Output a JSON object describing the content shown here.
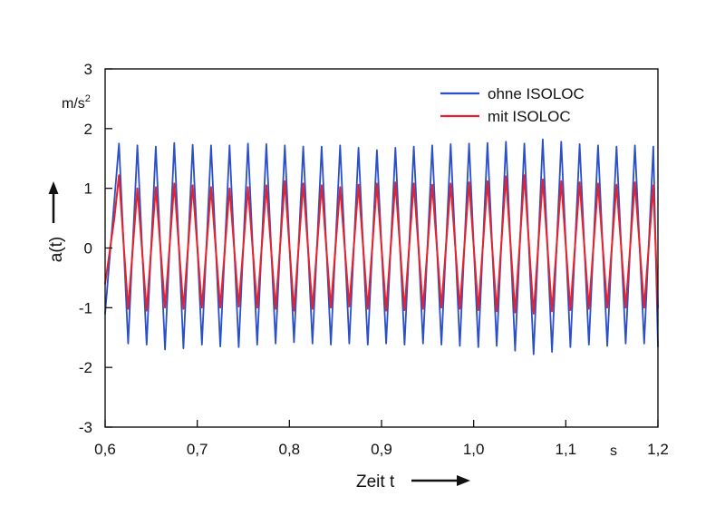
{
  "chart_data": {
    "type": "line",
    "title": "",
    "xlabel": "Zeit t",
    "ylabel": "a(t)",
    "x_unit": "s",
    "y_unit": "m/s",
    "y_unit_exponent": "2",
    "xlim": [
      0.6,
      1.2
    ],
    "ylim": [
      -3,
      3
    ],
    "x_ticks": [
      0.6,
      0.7,
      0.8,
      0.9,
      1.0,
      1.1,
      1.2
    ],
    "x_tick_labels": [
      "0,6",
      "0,7",
      "0,8",
      "0,9",
      "1,0",
      "1,1",
      "1,2"
    ],
    "y_ticks": [
      -3,
      -2,
      -1,
      0,
      1,
      2,
      3
    ],
    "y_tick_labels": [
      "-3",
      "-2",
      "-1",
      "0",
      "1",
      "2",
      "3"
    ],
    "grid": false,
    "legend_position": "top-right",
    "signal_frequency_hz": 50,
    "series": [
      {
        "name": "ohne ISOLOC",
        "color": "#2a4fc9",
        "x": [
          0.6,
          0.615,
          0.625,
          0.635,
          0.645,
          0.655,
          0.665,
          0.675,
          0.685,
          0.695,
          0.705,
          0.715,
          0.725,
          0.735,
          0.745,
          0.755,
          0.765,
          0.775,
          0.785,
          0.795,
          0.805,
          0.815,
          0.825,
          0.835,
          0.845,
          0.855,
          0.865,
          0.875,
          0.885,
          0.895,
          0.905,
          0.915,
          0.925,
          0.935,
          0.945,
          0.955,
          0.965,
          0.975,
          0.985,
          0.995,
          1.005,
          1.015,
          1.025,
          1.035,
          1.045,
          1.055,
          1.065,
          1.075,
          1.085,
          1.095,
          1.105,
          1.115,
          1.125,
          1.135,
          1.145,
          1.155,
          1.165,
          1.175,
          1.185,
          1.195,
          1.2
        ],
        "y": [
          -1.1,
          1.75,
          -1.6,
          1.72,
          -1.62,
          1.7,
          -1.7,
          1.76,
          -1.68,
          1.73,
          -1.62,
          1.72,
          -1.65,
          1.72,
          -1.66,
          1.75,
          -1.62,
          1.74,
          -1.6,
          1.72,
          -1.58,
          1.7,
          -1.6,
          1.7,
          -1.62,
          1.72,
          -1.6,
          1.68,
          -1.62,
          1.64,
          -1.6,
          1.68,
          -1.62,
          1.7,
          -1.6,
          1.72,
          -1.62,
          1.74,
          -1.64,
          1.75,
          -1.66,
          1.76,
          -1.64,
          1.78,
          -1.72,
          1.75,
          -1.78,
          1.82,
          -1.74,
          1.78,
          -1.66,
          1.74,
          -1.62,
          1.72,
          -1.64,
          1.7,
          -1.6,
          1.72,
          -1.6,
          1.7,
          -1.65
        ]
      },
      {
        "name": "mit ISOLOC",
        "color": "#e8222b",
        "x": [
          0.6,
          0.61,
          0.615,
          0.62,
          0.625,
          0.635,
          0.645,
          0.655,
          0.665,
          0.675,
          0.685,
          0.695,
          0.705,
          0.715,
          0.725,
          0.735,
          0.745,
          0.755,
          0.765,
          0.775,
          0.785,
          0.795,
          0.805,
          0.815,
          0.825,
          0.835,
          0.845,
          0.855,
          0.865,
          0.875,
          0.885,
          0.895,
          0.905,
          0.915,
          0.925,
          0.935,
          0.945,
          0.955,
          0.965,
          0.975,
          0.985,
          0.995,
          1.005,
          1.015,
          1.025,
          1.035,
          1.045,
          1.055,
          1.065,
          1.075,
          1.085,
          1.095,
          1.105,
          1.115,
          1.125,
          1.135,
          1.145,
          1.155,
          1.165,
          1.175,
          1.185,
          1.195,
          1.2
        ],
        "y": [
          -0.6,
          0.5,
          1.22,
          0.1,
          -1.02,
          1.0,
          -1.05,
          1.02,
          -1.0,
          1.08,
          -1.02,
          1.05,
          -1.0,
          1.02,
          -1.0,
          1.0,
          -0.98,
          1.02,
          -1.0,
          1.05,
          -1.02,
          1.12,
          -1.05,
          1.08,
          -1.02,
          1.05,
          -1.0,
          1.02,
          -0.98,
          1.06,
          -1.02,
          1.08,
          -1.05,
          1.1,
          -1.04,
          1.08,
          -1.02,
          1.06,
          -1.0,
          1.08,
          -1.02,
          1.1,
          -1.04,
          1.12,
          -1.06,
          1.2,
          -1.08,
          1.22,
          -1.1,
          1.15,
          -1.06,
          1.12,
          -1.04,
          1.1,
          -1.02,
          1.08,
          -1.0,
          1.06,
          -1.0,
          1.1,
          -1.0,
          1.05,
          -1.0
        ]
      }
    ]
  }
}
